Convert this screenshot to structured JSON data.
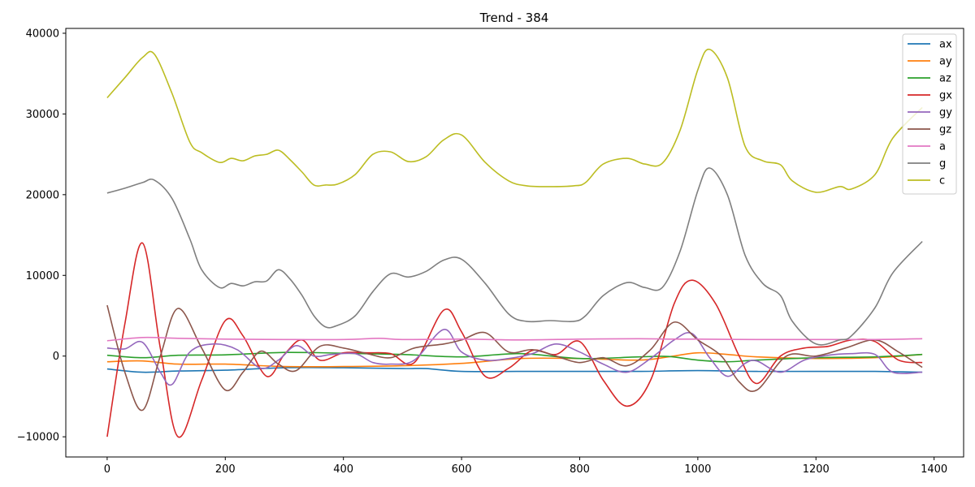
{
  "chart_data": {
    "type": "line",
    "title": "Trend - 384",
    "xlabel": "",
    "ylabel": "",
    "xlim": [
      -70,
      1450
    ],
    "ylim": [
      -12500,
      40600
    ],
    "xticks": [
      0,
      200,
      400,
      600,
      800,
      1000,
      1200,
      1400
    ],
    "yticks": [
      -10000,
      0,
      10000,
      20000,
      30000,
      40000
    ],
    "grid": false,
    "legend_position": "top-right",
    "series": [
      {
        "name": "ax",
        "color": "#1f77b4",
        "x": [
          0,
          60,
          120,
          200,
          300,
          400,
          500,
          540,
          600,
          700,
          800,
          900,
          1000,
          1100,
          1200,
          1300,
          1380
        ],
        "y": [
          -1600,
          -2000,
          -1850,
          -1750,
          -1450,
          -1450,
          -1550,
          -1550,
          -1900,
          -1900,
          -1900,
          -1900,
          -1800,
          -1900,
          -1900,
          -1900,
          -2000
        ]
      },
      {
        "name": "ay",
        "color": "#ff7f0e",
        "x": [
          0,
          60,
          120,
          200,
          300,
          400,
          500,
          600,
          700,
          800,
          900,
          950,
          1000,
          1050,
          1100,
          1200,
          1300,
          1380
        ],
        "y": [
          -700,
          -600,
          -1000,
          -1000,
          -1300,
          -1300,
          -1200,
          -900,
          -300,
          -300,
          -500,
          -100,
          400,
          200,
          -100,
          -300,
          -200,
          200
        ]
      },
      {
        "name": "az",
        "color": "#2ca02c",
        "x": [
          0,
          60,
          120,
          200,
          300,
          400,
          500,
          600,
          700,
          800,
          900,
          950,
          1000,
          1050,
          1100,
          1200,
          1300,
          1380
        ],
        "y": [
          100,
          -200,
          100,
          150,
          450,
          350,
          200,
          -100,
          300,
          -300,
          -100,
          -50,
          -500,
          -700,
          -500,
          -200,
          -100,
          200
        ]
      },
      {
        "name": "gx",
        "color": "#d62728",
        "x": [
          0,
          30,
          60,
          90,
          120,
          160,
          200,
          230,
          270,
          300,
          330,
          360,
          400,
          440,
          480,
          520,
          570,
          600,
          640,
          680,
          720,
          760,
          800,
          840,
          880,
          920,
          960,
          990,
          1030,
          1070,
          1100,
          1140,
          1180,
          1220,
          1260,
          1300,
          1340,
          1380
        ],
        "y": [
          -10000,
          4000,
          14000,
          1000,
          -10000,
          -3000,
          4400,
          2500,
          -2500,
          200,
          2000,
          -500,
          400,
          400,
          300,
          -800,
          5700,
          3000,
          -2500,
          -1500,
          700,
          200,
          1800,
          -3000,
          -6200,
          -3000,
          6500,
          9400,
          6500,
          0,
          -3400,
          0,
          1000,
          1200,
          2000,
          1800,
          -500,
          -800
        ]
      },
      {
        "name": "gy",
        "color": "#9467bd",
        "x": [
          0,
          30,
          60,
          90,
          110,
          140,
          180,
          220,
          260,
          290,
          320,
          350,
          380,
          420,
          450,
          480,
          520,
          570,
          600,
          640,
          680,
          720,
          760,
          800,
          840,
          880,
          920,
          960,
          990,
          1020,
          1050,
          1080,
          1100,
          1140,
          1180,
          1220,
          1260,
          1300,
          1330,
          1380
        ],
        "y": [
          1000,
          900,
          1700,
          -2000,
          -3500,
          500,
          1500,
          800,
          -1500,
          -500,
          1300,
          0,
          200,
          300,
          -800,
          -1000,
          -500,
          3300,
          500,
          -500,
          -300,
          300,
          1500,
          500,
          -1000,
          -2000,
          -300,
          2000,
          2800,
          -200,
          -2500,
          -900,
          -600,
          -2000,
          -500,
          100,
          300,
          200,
          -2000,
          -2000
        ]
      },
      {
        "name": "gz",
        "color": "#8c564b",
        "x": [
          0,
          30,
          60,
          90,
          120,
          160,
          200,
          230,
          260,
          290,
          320,
          360,
          400,
          440,
          480,
          520,
          570,
          600,
          640,
          680,
          720,
          760,
          800,
          840,
          880,
          920,
          960,
          1000,
          1040,
          1070,
          1100,
          1150,
          1200,
          1250,
          1300,
          1340,
          1380
        ],
        "y": [
          6300,
          -2000,
          -6700,
          0,
          5900,
          1000,
          -4200,
          -2000,
          600,
          -1000,
          -1800,
          1200,
          1000,
          300,
          -200,
          1000,
          1500,
          2000,
          2900,
          500,
          800,
          0,
          -800,
          -200,
          -1200,
          800,
          4200,
          2000,
          0,
          -3200,
          -4200,
          0,
          0,
          1000,
          2000,
          500,
          -1400
        ]
      },
      {
        "name": "a",
        "color": "#e377c2",
        "x": [
          0,
          60,
          120,
          200,
          300,
          400,
          460,
          500,
          600,
          700,
          800,
          900,
          950,
          1000,
          1100,
          1200,
          1300,
          1380
        ],
        "y": [
          1900,
          2300,
          2200,
          2100,
          2050,
          2050,
          2200,
          2050,
          2100,
          2000,
          2100,
          2150,
          2100,
          2100,
          2050,
          2050,
          2050,
          2150
        ]
      },
      {
        "name": "g",
        "color": "#7f7f7f",
        "x": [
          0,
          30,
          60,
          80,
          110,
          140,
          160,
          190,
          210,
          230,
          250,
          270,
          290,
          310,
          330,
          350,
          370,
          390,
          420,
          450,
          480,
          510,
          540,
          570,
          600,
          640,
          680,
          710,
          750,
          790,
          810,
          840,
          880,
          910,
          940,
          970,
          1000,
          1020,
          1050,
          1080,
          1110,
          1140,
          1160,
          1200,
          1240,
          1260,
          1300,
          1330,
          1380
        ],
        "y": [
          20200,
          20800,
          21500,
          21800,
          19500,
          14500,
          10700,
          8500,
          9000,
          8700,
          9200,
          9300,
          10700,
          9500,
          7500,
          5000,
          3600,
          3800,
          5000,
          8000,
          10200,
          9800,
          10500,
          11900,
          12000,
          9000,
          5200,
          4300,
          4400,
          4300,
          5000,
          7500,
          9100,
          8500,
          8500,
          13000,
          20500,
          23300,
          20000,
          12500,
          9000,
          7500,
          4300,
          1500,
          2000,
          2500,
          6000,
          10300,
          14200
        ]
      },
      {
        "name": "c",
        "color": "#bcbd22",
        "x": [
          0,
          30,
          60,
          80,
          110,
          140,
          160,
          190,
          210,
          230,
          250,
          270,
          290,
          310,
          330,
          350,
          370,
          390,
          420,
          450,
          480,
          510,
          540,
          570,
          600,
          640,
          680,
          710,
          750,
          790,
          810,
          840,
          880,
          910,
          940,
          970,
          1000,
          1020,
          1050,
          1080,
          1110,
          1140,
          1160,
          1200,
          1240,
          1260,
          1300,
          1330,
          1380
        ],
        "y": [
          32000,
          34500,
          37000,
          37400,
          32500,
          26500,
          25200,
          24000,
          24500,
          24200,
          24800,
          25000,
          25500,
          24300,
          22800,
          21200,
          21200,
          21300,
          22500,
          25000,
          25300,
          24100,
          24700,
          26800,
          27400,
          24000,
          21700,
          21100,
          21000,
          21100,
          21500,
          23800,
          24500,
          23800,
          23900,
          28000,
          35500,
          38000,
          34500,
          26000,
          24200,
          23700,
          21700,
          20300,
          21000,
          20700,
          22500,
          27000,
          30800
        ]
      }
    ]
  }
}
